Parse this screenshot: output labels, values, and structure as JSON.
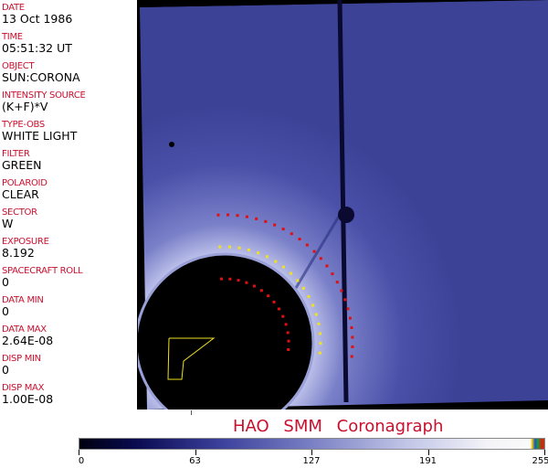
{
  "fields": [
    {
      "label": "DATE",
      "value": "13 Oct 1986"
    },
    {
      "label": "TIME",
      "value": "05:51:32 UT"
    },
    {
      "label": "OBJECT",
      "value": "SUN:CORONA"
    },
    {
      "label": "INTENSITY SOURCE",
      "value": "(K+F)*V"
    },
    {
      "label": "TYPE-OBS",
      "value": "WHITE LIGHT"
    },
    {
      "label": "FILTER",
      "value": "GREEN"
    },
    {
      "label": "POLAROID",
      "value": "CLEAR"
    },
    {
      "label": "SECTOR",
      "value": "W"
    },
    {
      "label": "EXPOSURE",
      "value": "8.192"
    },
    {
      "label": "SPACECRAFT ROLL",
      "value": "0"
    },
    {
      "label": "DATA MIN",
      "value": "0"
    },
    {
      "label": "DATA MAX",
      "value": "2.64E-08"
    },
    {
      "label": "DISP MIN",
      "value": "0"
    },
    {
      "label": "DISP MAX",
      "value": "1.00E-08"
    }
  ],
  "title": "HAO   SMM Coronagraph",
  "colorbar": {
    "ticks": [
      "0",
      "63",
      "127",
      "191",
      "255"
    ]
  },
  "colors": {
    "label": "#c8102e",
    "marker_red": "#e01010",
    "marker_yellow": "#f0e020"
  }
}
